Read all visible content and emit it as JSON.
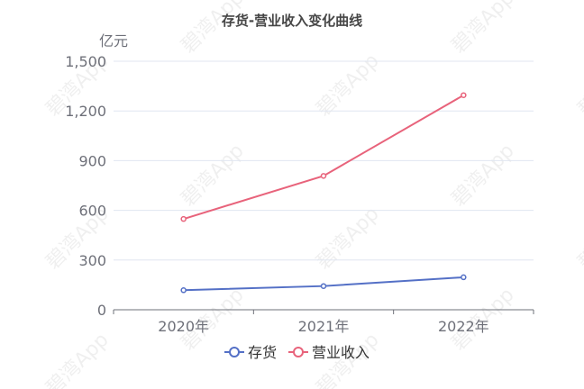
{
  "chart_data": {
    "type": "line",
    "title": "存货-营业收入变化曲线",
    "unit_label": "亿元",
    "categories": [
      "2020年",
      "2021年",
      "2022年"
    ],
    "ylim": [
      0,
      1500
    ],
    "yticks": [
      "0",
      "300",
      "600",
      "900",
      "1,200",
      "1,500"
    ],
    "ytick_values": [
      0,
      300,
      600,
      900,
      1200,
      1500
    ],
    "grid": true,
    "legend_position": "bottom",
    "series": [
      {
        "name": "存货",
        "values": [
          118,
          143,
          196
        ],
        "color": "#5470c6"
      },
      {
        "name": "营业收入",
        "values": [
          548,
          808,
          1295
        ],
        "color": "#e8637b"
      }
    ],
    "watermark": "碧湾App"
  }
}
